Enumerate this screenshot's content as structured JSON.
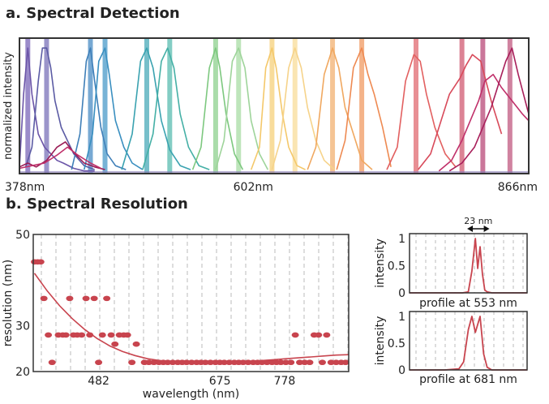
{
  "section_a_title": "a. Spectral Detection",
  "section_b_title": "b. Spectral Resolution",
  "colors": {
    "red": "#c8444e",
    "frame": "#333333",
    "grid": "#bbbbbb",
    "spectra": [
      "#6b55a8",
      "#5b5ba4",
      "#3f7fb8",
      "#3a8fc0",
      "#3aa2b0",
      "#45b0a6",
      "#7dc87f",
      "#9ed49a",
      "#f4c86a",
      "#f6d38a",
      "#f0a860",
      "#ee8a52",
      "#e26060",
      "#d84a5a",
      "#c0306a",
      "#a81f5a"
    ]
  },
  "chart_data": [
    {
      "type": "line",
      "ylabel": "normalized intensity",
      "xlim": [
        378,
        866
      ],
      "ylim": [
        0,
        1
      ],
      "x_ticks": [
        "378nm",
        "602nm",
        "866nm"
      ],
      "x_tick_values": [
        378,
        602,
        866
      ],
      "detection_bands": [
        {
          "center": 386,
          "color": "#7a66b8"
        },
        {
          "center": 404,
          "color": "#7a72b8"
        },
        {
          "center": 446,
          "color": "#4a8cc4"
        },
        {
          "center": 460,
          "color": "#4a9ac8"
        },
        {
          "center": 500,
          "color": "#4aaab8"
        },
        {
          "center": 522,
          "color": "#5abcb0"
        },
        {
          "center": 566,
          "color": "#8ed08e"
        },
        {
          "center": 588,
          "color": "#a8dca4"
        },
        {
          "center": 620,
          "color": "#f6d07a"
        },
        {
          "center": 642,
          "color": "#f8dc98"
        },
        {
          "center": 678,
          "color": "#f2b070"
        },
        {
          "center": 706,
          "color": "#f09a62"
        },
        {
          "center": 758,
          "color": "#e06a70"
        },
        {
          "center": 802,
          "color": "#d05a72"
        },
        {
          "center": 822,
          "color": "#b84a78"
        },
        {
          "center": 848,
          "color": "#c05a80"
        }
      ],
      "series": [
        {
          "color": "#6b55a8",
          "x": [
            378,
            382,
            386,
            390,
            396,
            402,
            408,
            414,
            420,
            430,
            440,
            450
          ],
          "y": [
            0.05,
            0.6,
            0.95,
            0.6,
            0.3,
            0.2,
            0.15,
            0.1,
            0.08,
            0.04,
            0.02,
            0.02
          ]
        },
        {
          "color": "#5b5ba4",
          "x": [
            384,
            390,
            396,
            400,
            404,
            408,
            412,
            418,
            424,
            430,
            440,
            450
          ],
          "y": [
            0.05,
            0.2,
            0.7,
            0.95,
            0.95,
            0.8,
            0.55,
            0.35,
            0.25,
            0.15,
            0.06,
            0.03
          ]
        },
        {
          "color": "#3f7fb8",
          "x": [
            428,
            436,
            442,
            446,
            450,
            456,
            462,
            470,
            480
          ],
          "y": [
            0.03,
            0.3,
            0.85,
            0.95,
            0.7,
            0.35,
            0.15,
            0.06,
            0.03
          ]
        },
        {
          "color": "#3a8fc0",
          "x": [
            440,
            448,
            454,
            460,
            464,
            470,
            478,
            486,
            496
          ],
          "y": [
            0.03,
            0.3,
            0.85,
            0.95,
            0.75,
            0.4,
            0.2,
            0.08,
            0.03
          ]
        },
        {
          "color": "#3aa2b0",
          "x": [
            476,
            486,
            494,
            500,
            506,
            514,
            522,
            532,
            542
          ],
          "y": [
            0.03,
            0.3,
            0.85,
            0.95,
            0.8,
            0.4,
            0.18,
            0.06,
            0.03
          ]
        },
        {
          "color": "#45b0a6",
          "x": [
            496,
            506,
            514,
            520,
            526,
            532,
            540,
            550,
            560
          ],
          "y": [
            0.03,
            0.3,
            0.85,
            0.95,
            0.8,
            0.45,
            0.2,
            0.06,
            0.03
          ]
        },
        {
          "color": "#7dc87f",
          "x": [
            544,
            552,
            560,
            566,
            570,
            576,
            584,
            592
          ],
          "y": [
            0.03,
            0.2,
            0.8,
            0.95,
            0.8,
            0.45,
            0.15,
            0.03
          ]
        },
        {
          "color": "#9ed49a",
          "x": [
            566,
            574,
            582,
            588,
            594,
            600,
            608,
            616
          ],
          "y": [
            0.03,
            0.25,
            0.85,
            0.95,
            0.8,
            0.4,
            0.15,
            0.03
          ]
        },
        {
          "color": "#f4c86a",
          "x": [
            600,
            608,
            614,
            620,
            624,
            630,
            636,
            644,
            652
          ],
          "y": [
            0.03,
            0.2,
            0.8,
            0.95,
            0.8,
            0.45,
            0.2,
            0.06,
            0.03
          ]
        },
        {
          "color": "#f6d38a",
          "x": [
            620,
            628,
            636,
            642,
            648,
            654,
            662,
            670,
            680
          ],
          "y": [
            0.03,
            0.25,
            0.8,
            0.95,
            0.8,
            0.5,
            0.25,
            0.1,
            0.03
          ]
        },
        {
          "color": "#f0a860",
          "x": [
            654,
            662,
            670,
            678,
            684,
            690,
            698,
            706,
            716
          ],
          "y": [
            0.03,
            0.2,
            0.75,
            0.95,
            0.8,
            0.5,
            0.3,
            0.1,
            0.03
          ]
        },
        {
          "color": "#ee8a52",
          "x": [
            682,
            690,
            698,
            706,
            712,
            718,
            726,
            734
          ],
          "y": [
            0.03,
            0.25,
            0.8,
            0.95,
            0.75,
            0.6,
            0.35,
            0.05
          ]
        },
        {
          "color": "#e26060",
          "x": [
            730,
            740,
            748,
            756,
            762,
            768,
            776,
            786,
            796
          ],
          "y": [
            0.03,
            0.2,
            0.7,
            0.9,
            0.85,
            0.6,
            0.35,
            0.15,
            0.05
          ]
        },
        {
          "color": "#d84a5a",
          "x": [
            760,
            772,
            782,
            790,
            800,
            806,
            812,
            820,
            830,
            840
          ],
          "y": [
            0.03,
            0.15,
            0.4,
            0.6,
            0.72,
            0.82,
            0.9,
            0.85,
            0.55,
            0.3
          ]
        },
        {
          "color": "#c0306a",
          "x": [
            780,
            792,
            802,
            810,
            818,
            824,
            832,
            840,
            850,
            860,
            866
          ],
          "y": [
            0.02,
            0.1,
            0.25,
            0.4,
            0.55,
            0.7,
            0.75,
            0.65,
            0.55,
            0.45,
            0.4
          ]
        },
        {
          "color": "#a81f5a",
          "x": [
            790,
            802,
            814,
            822,
            830,
            838,
            844,
            850,
            856,
            866
          ],
          "y": [
            0.02,
            0.08,
            0.2,
            0.35,
            0.5,
            0.7,
            0.85,
            0.95,
            0.75,
            0.45
          ]
        },
        {
          "color": "#9a1c55",
          "x": [
            378,
            386,
            394,
            404,
            414,
            422,
            430,
            440,
            450,
            460
          ],
          "y": [
            0.05,
            0.08,
            0.05,
            0.1,
            0.2,
            0.24,
            0.16,
            0.08,
            0.05,
            0.03
          ]
        },
        {
          "color": "#c0306a",
          "x": [
            378,
            390,
            402,
            414,
            424,
            434,
            446,
            456
          ],
          "y": [
            0.04,
            0.06,
            0.08,
            0.14,
            0.2,
            0.14,
            0.08,
            0.04
          ]
        }
      ]
    },
    {
      "type": "scatter",
      "xlabel": "wavelength (nm)",
      "ylabel": "resolution (nm)",
      "xlim": [
        378,
        880
      ],
      "ylim": [
        20,
        50
      ],
      "x_ticks": [
        "482",
        "675",
        "778"
      ],
      "x_tick_values": [
        482,
        675,
        778
      ],
      "y_ticks": [
        "50",
        "30",
        "20"
      ],
      "y_tick_values": [
        50,
        30,
        20
      ],
      "trend": {
        "x": [
          380,
          400,
          420,
          440,
          460,
          480,
          500,
          520,
          540,
          560,
          580,
          600,
          620,
          640,
          660,
          680,
          700,
          720,
          740,
          760,
          780,
          800,
          820,
          840,
          860,
          880
        ],
        "y": [
          41.5,
          37.7,
          34.4,
          31.6,
          29.2,
          27.2,
          25.6,
          24.4,
          23.5,
          22.8,
          22.4,
          22.2,
          22.1,
          22.0,
          22.0,
          22.0,
          22.1,
          22.2,
          22.4,
          22.6,
          22.8,
          23.0,
          23.2,
          23.4,
          23.6,
          23.7
        ]
      },
      "points": [
        {
          "x": 380,
          "y": 44
        },
        {
          "x": 385,
          "y": 44
        },
        {
          "x": 390,
          "y": 44
        },
        {
          "x": 395,
          "y": 36
        },
        {
          "x": 402,
          "y": 28
        },
        {
          "x": 408,
          "y": 22
        },
        {
          "x": 418,
          "y": 28
        },
        {
          "x": 425,
          "y": 28
        },
        {
          "x": 430,
          "y": 28
        },
        {
          "x": 436,
          "y": 36
        },
        {
          "x": 442,
          "y": 28
        },
        {
          "x": 448,
          "y": 28
        },
        {
          "x": 455,
          "y": 28
        },
        {
          "x": 462,
          "y": 36
        },
        {
          "x": 468,
          "y": 28
        },
        {
          "x": 475,
          "y": 36
        },
        {
          "x": 482,
          "y": 22
        },
        {
          "x": 488,
          "y": 28
        },
        {
          "x": 495,
          "y": 36
        },
        {
          "x": 502,
          "y": 28
        },
        {
          "x": 508,
          "y": 26
        },
        {
          "x": 515,
          "y": 28
        },
        {
          "x": 522,
          "y": 28
        },
        {
          "x": 528,
          "y": 28
        },
        {
          "x": 535,
          "y": 22
        },
        {
          "x": 542,
          "y": 26
        },
        {
          "x": 555,
          "y": 22
        },
        {
          "x": 562,
          "y": 22
        },
        {
          "x": 570,
          "y": 22
        },
        {
          "x": 578,
          "y": 22
        },
        {
          "x": 585,
          "y": 22
        },
        {
          "x": 592,
          "y": 22
        },
        {
          "x": 600,
          "y": 22
        },
        {
          "x": 608,
          "y": 22
        },
        {
          "x": 615,
          "y": 22
        },
        {
          "x": 622,
          "y": 22
        },
        {
          "x": 630,
          "y": 22
        },
        {
          "x": 638,
          "y": 22
        },
        {
          "x": 645,
          "y": 22
        },
        {
          "x": 652,
          "y": 22
        },
        {
          "x": 660,
          "y": 22
        },
        {
          "x": 668,
          "y": 22
        },
        {
          "x": 675,
          "y": 22
        },
        {
          "x": 682,
          "y": 22
        },
        {
          "x": 690,
          "y": 22
        },
        {
          "x": 698,
          "y": 22
        },
        {
          "x": 705,
          "y": 22
        },
        {
          "x": 712,
          "y": 22
        },
        {
          "x": 720,
          "y": 22
        },
        {
          "x": 728,
          "y": 22
        },
        {
          "x": 735,
          "y": 22
        },
        {
          "x": 742,
          "y": 22
        },
        {
          "x": 750,
          "y": 22
        },
        {
          "x": 758,
          "y": 22
        },
        {
          "x": 765,
          "y": 22
        },
        {
          "x": 772,
          "y": 22
        },
        {
          "x": 780,
          "y": 22
        },
        {
          "x": 788,
          "y": 22
        },
        {
          "x": 795,
          "y": 28
        },
        {
          "x": 802,
          "y": 22
        },
        {
          "x": 810,
          "y": 22
        },
        {
          "x": 818,
          "y": 22
        },
        {
          "x": 825,
          "y": 28
        },
        {
          "x": 832,
          "y": 28
        },
        {
          "x": 838,
          "y": 22
        },
        {
          "x": 845,
          "y": 28
        },
        {
          "x": 852,
          "y": 22
        },
        {
          "x": 860,
          "y": 22
        },
        {
          "x": 868,
          "y": 22
        },
        {
          "x": 875,
          "y": 22
        }
      ]
    },
    {
      "type": "line",
      "xlabel": "profile at 553 nm",
      "ylabel": "intensity",
      "annotation": "23 nm",
      "xlim": [
        0,
        1
      ],
      "ylim": [
        0,
        1
      ],
      "y_ticks": [
        "1",
        "0.5",
        "0"
      ],
      "y_tick_values": [
        1,
        0.5,
        0
      ],
      "series": [
        {
          "x": [
            0.0,
            0.3,
            0.45,
            0.5,
            0.53,
            0.56,
            0.58,
            0.6,
            0.62,
            0.64,
            0.66,
            0.7,
            0.8,
            1.0
          ],
          "y": [
            0,
            0,
            0,
            0.02,
            0.4,
            1.0,
            0.45,
            0.85,
            0.35,
            0.05,
            0.02,
            0,
            0,
            0
          ]
        }
      ]
    },
    {
      "type": "line",
      "xlabel": "profile at 681 nm",
      "ylabel": "intensity",
      "xlim": [
        0,
        1
      ],
      "ylim": [
        0,
        1
      ],
      "y_ticks": [
        "1",
        "0.5",
        "0"
      ],
      "y_tick_values": [
        1,
        0.5,
        0
      ],
      "series": [
        {
          "x": [
            0.0,
            0.3,
            0.42,
            0.46,
            0.5,
            0.53,
            0.56,
            0.6,
            0.63,
            0.66,
            0.7,
            0.8,
            1.0
          ],
          "y": [
            0,
            0,
            0.02,
            0.15,
            0.75,
            1.0,
            0.7,
            1.0,
            0.3,
            0.05,
            0,
            0,
            0
          ]
        }
      ]
    }
  ]
}
